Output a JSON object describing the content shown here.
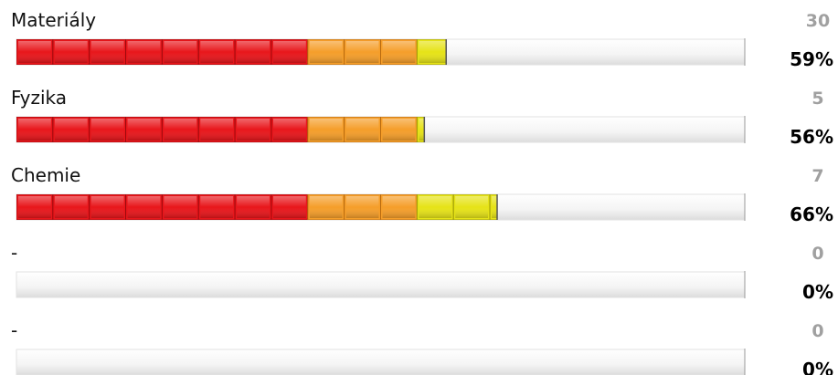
{
  "items": [
    {
      "label": "Materiály",
      "count": 30,
      "percent": 59,
      "percent_label": "59%"
    },
    {
      "label": "Fyzika",
      "count": 5,
      "percent": 56,
      "percent_label": "56%"
    },
    {
      "label": "Chemie",
      "count": 7,
      "percent": 66,
      "percent_label": "66%"
    },
    {
      "label": "-",
      "count": 0,
      "percent": 0,
      "percent_label": "0%"
    },
    {
      "label": "-",
      "count": 0,
      "percent": 0,
      "percent_label": "0%"
    }
  ]
}
